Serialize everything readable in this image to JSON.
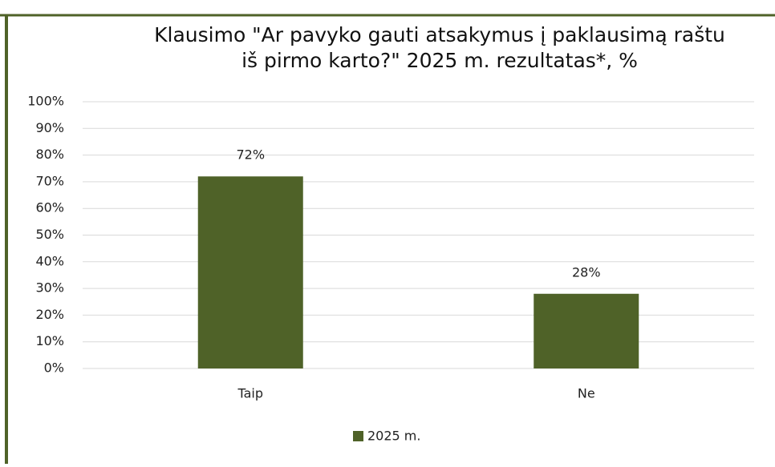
{
  "chart_data": {
    "type": "bar",
    "title": [
      "Klausimo \"Ar pavyko gauti atsakymus į paklausimą raštu",
      "iš pirmo karto?\" 2025 m. rezultatas*, %"
    ],
    "categories": [
      "Taip",
      "Ne"
    ],
    "series": [
      {
        "name": "2025 m.",
        "color": "#4f6228",
        "values": [
          72,
          28
        ],
        "value_labels": [
          "72%",
          "28%"
        ]
      }
    ],
    "ylim": [
      0,
      100
    ],
    "yticks": [
      {
        "value": 0,
        "label": "0%"
      },
      {
        "value": 10,
        "label": "10%"
      },
      {
        "value": 20,
        "label": "20%"
      },
      {
        "value": 30,
        "label": "30%"
      },
      {
        "value": 40,
        "label": "40%"
      },
      {
        "value": 50,
        "label": "50%"
      },
      {
        "value": 60,
        "label": "60%"
      },
      {
        "value": 70,
        "label": "70%"
      },
      {
        "value": 80,
        "label": "80%"
      },
      {
        "value": 90,
        "label": "90%"
      },
      {
        "value": 100,
        "label": "100%"
      }
    ],
    "grid": true,
    "legend": "bottom"
  }
}
